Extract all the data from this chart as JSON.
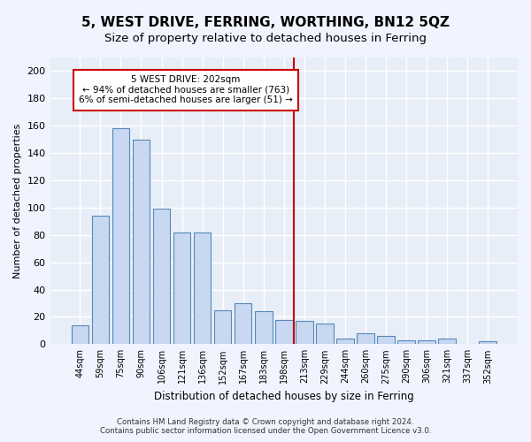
{
  "title": "5, WEST DRIVE, FERRING, WORTHING, BN12 5QZ",
  "subtitle": "Size of property relative to detached houses in Ferring",
  "xlabel": "Distribution of detached houses by size in Ferring",
  "ylabel": "Number of detached properties",
  "categories": [
    "44sqm",
    "59sqm",
    "75sqm",
    "90sqm",
    "106sqm",
    "121sqm",
    "136sqm",
    "152sqm",
    "167sqm",
    "183sqm",
    "198sqm",
    "213sqm",
    "229sqm",
    "244sqm",
    "260sqm",
    "275sqm",
    "290sqm",
    "306sqm",
    "321sqm",
    "337sqm",
    "352sqm"
  ],
  "values": [
    14,
    94,
    158,
    150,
    99,
    82,
    82,
    25,
    30,
    24,
    18,
    17,
    15,
    4,
    8,
    6,
    3,
    3,
    4,
    0,
    2
  ],
  "bar_color": "#c8d8f0",
  "bar_edge_color": "#5588bb",
  "background_color": "#e8eef8",
  "grid_color": "#ffffff",
  "red_line_index": 10.5,
  "annotation_line1": "5 WEST DRIVE: 202sqm",
  "annotation_line2": "← 94% of detached houses are smaller (763)",
  "annotation_line3": "6% of semi-detached houses are larger (51) →",
  "annotation_box_color": "#ffffff",
  "annotation_box_edge": "#cc0000",
  "ylim": [
    0,
    210
  ],
  "yticks": [
    0,
    20,
    40,
    60,
    80,
    100,
    120,
    140,
    160,
    180,
    200
  ],
  "footer": "Contains HM Land Registry data © Crown copyright and database right 2024.\nContains public sector information licensed under the Open Government Licence v3.0.",
  "title_fontsize": 11,
  "subtitle_fontsize": 9.5,
  "red_line_color": "#cc0000",
  "fig_bg_color": "#f0f4ff"
}
